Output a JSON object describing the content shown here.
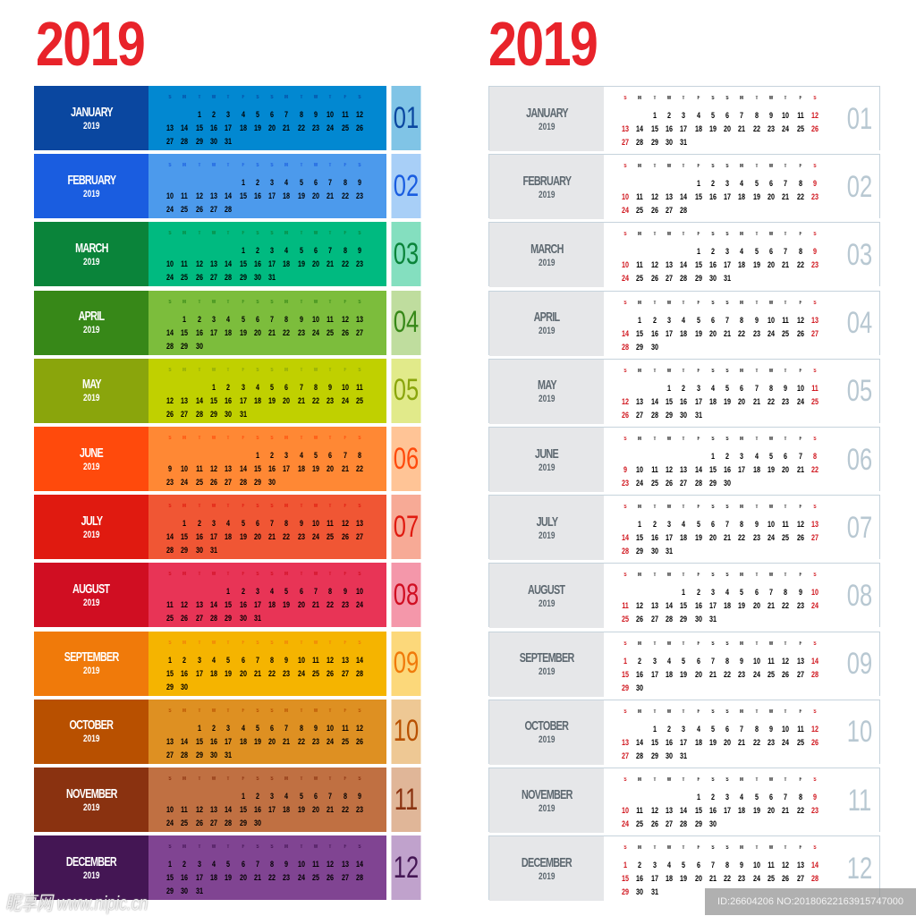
{
  "year_title": "2019",
  "weekday_labels": [
    "S",
    "M",
    "T",
    "W",
    "T",
    "F",
    "S",
    "S",
    "M",
    "T",
    "W",
    "T",
    "F",
    "S"
  ],
  "weekend_color": "#d0131b",
  "months": [
    {
      "name": "JANUARY",
      "year": "2019",
      "number": "01",
      "first_weekday": 2,
      "days": 31,
      "colors": {
        "dark": "#0a47a0",
        "mid": "#0288d1",
        "light": "#80c4e6"
      }
    },
    {
      "name": "FEBRUARY",
      "year": "2019",
      "number": "02",
      "first_weekday": 5,
      "days": 28,
      "colors": {
        "dark": "#1a5de0",
        "mid": "#4c9aec",
        "light": "#a8cff7"
      }
    },
    {
      "name": "MARCH",
      "year": "2019",
      "number": "03",
      "first_weekday": 5,
      "days": 31,
      "colors": {
        "dark": "#0a843a",
        "mid": "#00ba80",
        "light": "#84dfbf"
      }
    },
    {
      "name": "APRIL",
      "year": "2019",
      "number": "04",
      "first_weekday": 1,
      "days": 30,
      "colors": {
        "dark": "#378818",
        "mid": "#7cbd3c",
        "light": "#bfdd9e"
      }
    },
    {
      "name": "MAY",
      "year": "2019",
      "number": "05",
      "first_weekday": 3,
      "days": 31,
      "colors": {
        "dark": "#8aa50c",
        "mid": "#c0d000",
        "light": "#e1ea8a"
      }
    },
    {
      "name": "JUNE",
      "year": "2019",
      "number": "06",
      "first_weekday": 6,
      "days": 30,
      "colors": {
        "dark": "#ff4a0c",
        "mid": "#ff8834",
        "light": "#ffc496"
      }
    },
    {
      "name": "JULY",
      "year": "2019",
      "number": "07",
      "first_weekday": 1,
      "days": 31,
      "colors": {
        "dark": "#e01a10",
        "mid": "#f05634",
        "light": "#f7aa96"
      }
    },
    {
      "name": "AUGUST",
      "year": "2019",
      "number": "08",
      "first_weekday": 4,
      "days": 31,
      "colors": {
        "dark": "#d00e22",
        "mid": "#e83456",
        "light": "#f497aa"
      }
    },
    {
      "name": "SEPTEMBER",
      "year": "2019",
      "number": "09",
      "first_weekday": 0,
      "days": 30,
      "colors": {
        "dark": "#f07a0a",
        "mid": "#f5b400",
        "light": "#fcd87a"
      }
    },
    {
      "name": "OCTOBER",
      "year": "2019",
      "number": "10",
      "first_weekday": 2,
      "days": 31,
      "colors": {
        "dark": "#b85000",
        "mid": "#de9022",
        "light": "#eec894"
      }
    },
    {
      "name": "NOVEMBER",
      "year": "2019",
      "number": "11",
      "first_weekday": 5,
      "days": 30,
      "colors": {
        "dark": "#8a3210",
        "mid": "#c07042",
        "light": "#e0b698"
      }
    },
    {
      "name": "DECEMBER",
      "year": "2019",
      "number": "12",
      "first_weekday": 0,
      "days": 31,
      "colors": {
        "dark": "#441654",
        "mid": "#804492",
        "light": "#c0a2cc"
      }
    }
  ],
  "watermark_left": "昵享网 www.nipic.cn",
  "watermark_right": "ID:26604206 NO:20180622163915747000"
}
